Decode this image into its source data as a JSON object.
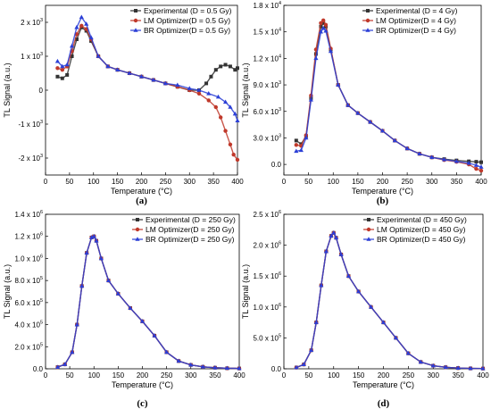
{
  "chart_data": [
    {
      "type": "scatter",
      "panel_label": "(a)",
      "xlabel": "Temperature (°C)",
      "ylabel": "TL Signal (a.u.)",
      "xlim": [
        0,
        400
      ],
      "ylim": [
        -2500,
        2500
      ],
      "xticks": [
        0,
        50,
        100,
        150,
        200,
        250,
        300,
        350,
        400
      ],
      "yticks": [
        {
          "value": -2000,
          "mant": "-2 x 10",
          "exp": "3"
        },
        {
          "value": -1000,
          "mant": "-1 x 10",
          "exp": "3"
        },
        {
          "value": 0,
          "mant": "0",
          "exp": ""
        },
        {
          "value": 1000,
          "mant": "1 x 10",
          "exp": "3"
        },
        {
          "value": 2000,
          "mant": "2 x 10",
          "exp": "3"
        }
      ],
      "legend_position": "top-right",
      "series": [
        {
          "name": "Experimental (D = 0.5 Gy)",
          "color": "#333333",
          "marker": "square",
          "x": [
            25,
            35,
            45,
            55,
            65,
            75,
            85,
            95,
            110,
            130,
            150,
            175,
            200,
            225,
            250,
            275,
            300,
            320,
            335,
            345,
            355,
            365,
            375,
            385,
            395,
            400
          ],
          "y": [
            400,
            350,
            450,
            1000,
            1500,
            1850,
            1750,
            1450,
            1000,
            700,
            600,
            500,
            400,
            300,
            200,
            100,
            0,
            0,
            200,
            400,
            600,
            700,
            750,
            700,
            600,
            650
          ]
        },
        {
          "name": "LM Optimizer(D = 0.5 Gy)",
          "color": "#c0392b",
          "marker": "circle",
          "x": [
            25,
            35,
            45,
            55,
            65,
            75,
            85,
            95,
            110,
            130,
            150,
            175,
            200,
            225,
            250,
            275,
            300,
            320,
            340,
            355,
            365,
            375,
            385,
            392,
            400
          ],
          "y": [
            650,
            600,
            700,
            1150,
            1650,
            1900,
            1800,
            1500,
            1000,
            700,
            600,
            500,
            400,
            300,
            200,
            100,
            0,
            -100,
            -300,
            -500,
            -800,
            -1200,
            -1600,
            -1900,
            -2050
          ]
        },
        {
          "name": "BR Optimizer(D = 0.5 Gy)",
          "color": "#2b3fd6",
          "marker": "triangle",
          "x": [
            25,
            35,
            45,
            55,
            65,
            75,
            85,
            95,
            110,
            130,
            150,
            175,
            200,
            225,
            250,
            275,
            300,
            320,
            340,
            360,
            375,
            385,
            395,
            400
          ],
          "y": [
            850,
            700,
            750,
            1300,
            1850,
            2150,
            1950,
            1550,
            1000,
            700,
            600,
            500,
            400,
            300,
            200,
            150,
            50,
            0,
            -100,
            -200,
            -350,
            -500,
            -700,
            -900
          ]
        }
      ]
    },
    {
      "type": "scatter",
      "panel_label": "(b)",
      "xlabel": "Temperature (°C)",
      "ylabel": "TL Signal (a.u.)",
      "xlim": [
        0,
        400
      ],
      "ylim": [
        -1200,
        18000
      ],
      "xticks": [
        0,
        50,
        100,
        150,
        200,
        250,
        300,
        350,
        400
      ],
      "yticks": [
        {
          "value": 0,
          "mant": "0.0",
          "exp": ""
        },
        {
          "value": 3000,
          "mant": "3.0 x 10",
          "exp": "3"
        },
        {
          "value": 6000,
          "mant": "6.0 x 10",
          "exp": "3"
        },
        {
          "value": 9000,
          "mant": "9.0 x 10",
          "exp": "3"
        },
        {
          "value": 12000,
          "mant": "1.2 x 10",
          "exp": "4"
        },
        {
          "value": 15000,
          "mant": "1.5 x 10",
          "exp": "4"
        },
        {
          "value": 18000,
          "mant": "1.8 x 10",
          "exp": "4"
        }
      ],
      "legend_position": "top-right",
      "series": [
        {
          "name": "Experimental (D = 4 Gy)",
          "color": "#333333",
          "marker": "square",
          "x": [
            25,
            35,
            45,
            55,
            65,
            75,
            80,
            85,
            95,
            110,
            130,
            150,
            175,
            200,
            225,
            250,
            275,
            300,
            325,
            350,
            375,
            390,
            400
          ],
          "y": [
            2700,
            2300,
            3200,
            7500,
            12500,
            15600,
            16000,
            15600,
            13000,
            9000,
            6700,
            5800,
            4800,
            3800,
            2700,
            1800,
            1200,
            800,
            600,
            450,
            350,
            300,
            250
          ]
        },
        {
          "name": "LM Optimizer(D = 4 Gy)",
          "color": "#c0392b",
          "marker": "circle",
          "x": [
            25,
            35,
            45,
            55,
            65,
            75,
            80,
            85,
            95,
            110,
            130,
            150,
            175,
            200,
            225,
            250,
            275,
            300,
            325,
            350,
            375,
            390,
            400
          ],
          "y": [
            2200,
            2100,
            3300,
            7800,
            13000,
            16000,
            16300,
            15800,
            13100,
            9000,
            6700,
            5800,
            4800,
            3800,
            2700,
            1800,
            1200,
            800,
            500,
            300,
            0,
            -500,
            -700
          ]
        },
        {
          "name": "BR Optimizer(D = 4 Gy)",
          "color": "#2b3fd6",
          "marker": "triangle",
          "x": [
            25,
            35,
            45,
            55,
            65,
            75,
            80,
            85,
            95,
            110,
            130,
            150,
            175,
            200,
            225,
            250,
            275,
            300,
            325,
            350,
            375,
            390,
            400
          ],
          "y": [
            1500,
            1600,
            3000,
            7300,
            12000,
            15000,
            15400,
            15100,
            12800,
            9000,
            6700,
            5800,
            4800,
            3800,
            2700,
            1800,
            1200,
            800,
            550,
            350,
            150,
            -100,
            -300
          ]
        }
      ]
    },
    {
      "type": "scatter",
      "panel_label": "(c)",
      "xlabel": "Temperature (°C)",
      "ylabel": "TL Signal (a.u.)",
      "xlim": [
        0,
        400
      ],
      "ylim": [
        0,
        1400000
      ],
      "xticks": [
        0,
        50,
        100,
        150,
        200,
        250,
        300,
        350,
        400
      ],
      "yticks": [
        {
          "value": 0,
          "mant": "0.0",
          "exp": ""
        },
        {
          "value": 200000,
          "mant": "2.0 x 10",
          "exp": "5"
        },
        {
          "value": 400000,
          "mant": "4.0 x 10",
          "exp": "5"
        },
        {
          "value": 600000,
          "mant": "6.0 x 10",
          "exp": "5"
        },
        {
          "value": 800000,
          "mant": "8.0 x 10",
          "exp": "5"
        },
        {
          "value": 1000000,
          "mant": "1.0 x 10",
          "exp": "6"
        },
        {
          "value": 1200000,
          "mant": "1.2 x 10",
          "exp": "6"
        },
        {
          "value": 1400000,
          "mant": "1.4 x 10",
          "exp": "6"
        }
      ],
      "legend_position": "top-right",
      "series": [
        {
          "name": "Experimental (D = 250 Gy)",
          "color": "#333333",
          "marker": "square",
          "x": [
            25,
            40,
            55,
            65,
            75,
            85,
            95,
            100,
            105,
            115,
            130,
            150,
            175,
            200,
            225,
            250,
            275,
            300,
            325,
            350,
            375,
            400
          ],
          "y": [
            15000,
            40000,
            150000,
            400000,
            750000,
            1050000,
            1190000,
            1200000,
            1160000,
            1000000,
            800000,
            680000,
            550000,
            430000,
            300000,
            150000,
            70000,
            35000,
            18000,
            10000,
            5000,
            3000
          ]
        },
        {
          "name": "LM Optimizer(D = 250 Gy)",
          "color": "#c0392b",
          "marker": "circle",
          "x": [
            25,
            40,
            55,
            65,
            75,
            85,
            95,
            100,
            105,
            115,
            130,
            150,
            175,
            200,
            225,
            250,
            275,
            300,
            325,
            350,
            375,
            400
          ],
          "y": [
            15000,
            40000,
            150000,
            400000,
            750000,
            1050000,
            1190000,
            1200000,
            1160000,
            1000000,
            800000,
            680000,
            550000,
            430000,
            300000,
            150000,
            70000,
            35000,
            18000,
            10000,
            5000,
            3000
          ]
        },
        {
          "name": "BR Optimizer(D = 250 Gy)",
          "color": "#2b3fd6",
          "marker": "triangle",
          "x": [
            25,
            40,
            55,
            65,
            75,
            85,
            95,
            100,
            105,
            115,
            130,
            150,
            175,
            200,
            225,
            250,
            275,
            300,
            325,
            350,
            375,
            400
          ],
          "y": [
            15000,
            40000,
            150000,
            400000,
            750000,
            1050000,
            1190000,
            1200000,
            1160000,
            1000000,
            800000,
            680000,
            550000,
            430000,
            300000,
            150000,
            70000,
            35000,
            18000,
            10000,
            5000,
            3000
          ]
        }
      ]
    },
    {
      "type": "scatter",
      "panel_label": "(d)",
      "xlabel": "Temperature (°C)",
      "ylabel": "TL Signal (a.u.)",
      "xlim": [
        0,
        400
      ],
      "ylim": [
        0,
        2500000
      ],
      "xticks": [
        0,
        50,
        100,
        150,
        200,
        250,
        300,
        350,
        400
      ],
      "yticks": [
        {
          "value": 0,
          "mant": "0.0",
          "exp": ""
        },
        {
          "value": 500000,
          "mant": "5.0 x 10",
          "exp": "5"
        },
        {
          "value": 1000000,
          "mant": "1.0 x 10",
          "exp": "6"
        },
        {
          "value": 1500000,
          "mant": "1.5 x 10",
          "exp": "6"
        },
        {
          "value": 2000000,
          "mant": "2.0 x 10",
          "exp": "6"
        },
        {
          "value": 2500000,
          "mant": "2.5 x 10",
          "exp": "6"
        }
      ],
      "legend_position": "top-right",
      "series": [
        {
          "name": "Experimental (D = 450 Gy)",
          "color": "#333333",
          "marker": "square",
          "x": [
            25,
            40,
            55,
            65,
            75,
            85,
            95,
            100,
            105,
            115,
            130,
            150,
            175,
            200,
            225,
            250,
            275,
            300,
            325,
            350,
            375,
            400
          ],
          "y": [
            20000,
            70000,
            300000,
            750000,
            1350000,
            1900000,
            2150000,
            2200000,
            2120000,
            1850000,
            1500000,
            1250000,
            1000000,
            750000,
            500000,
            250000,
            110000,
            50000,
            25000,
            12000,
            6000,
            4000
          ]
        },
        {
          "name": "LM Optimizer(D = 450 Gy)",
          "color": "#c0392b",
          "marker": "circle",
          "x": [
            25,
            40,
            55,
            65,
            75,
            85,
            95,
            100,
            105,
            115,
            130,
            150,
            175,
            200,
            225,
            250,
            275,
            300,
            325,
            350,
            375,
            400
          ],
          "y": [
            20000,
            70000,
            300000,
            750000,
            1350000,
            1900000,
            2150000,
            2200000,
            2120000,
            1850000,
            1500000,
            1250000,
            1000000,
            750000,
            500000,
            250000,
            110000,
            50000,
            25000,
            12000,
            6000,
            4000
          ]
        },
        {
          "name": "BR Optimizer(D = 450 Gy)",
          "color": "#2b3fd6",
          "marker": "triangle",
          "x": [
            25,
            40,
            55,
            65,
            75,
            85,
            95,
            100,
            105,
            115,
            130,
            150,
            175,
            200,
            225,
            250,
            275,
            300,
            325,
            350,
            375,
            400
          ],
          "y": [
            20000,
            70000,
            300000,
            750000,
            1350000,
            1900000,
            2150000,
            2200000,
            2120000,
            1850000,
            1500000,
            1250000,
            1000000,
            750000,
            500000,
            250000,
            110000,
            50000,
            25000,
            12000,
            6000,
            4000
          ]
        }
      ]
    }
  ]
}
